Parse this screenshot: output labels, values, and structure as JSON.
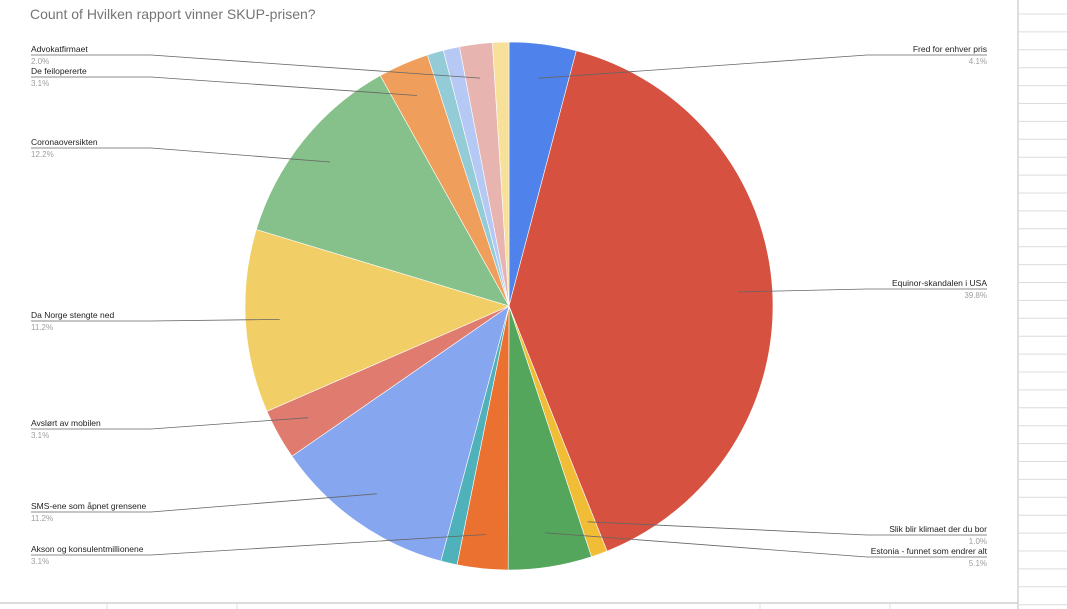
{
  "chart_data": {
    "type": "pie",
    "title": "Count of Hvilken rapport vinner SKUP-prisen?",
    "slices": [
      {
        "label": "Fred for enhver pris",
        "value": 4.1,
        "pct_label": "4.1%",
        "color": "#4f82ea"
      },
      {
        "label": "Equinor-skandalen i USA",
        "value": 39.8,
        "pct_label": "39.8%",
        "color": "#d65140"
      },
      {
        "label": "Slik blir klimaet der du bor",
        "value": 1.0,
        "pct_label": "1.0%",
        "color": "#f2bd36"
      },
      {
        "label": "Estonia - funnet som endrer alt",
        "value": 5.1,
        "pct_label": "5.1%",
        "color": "#55a65d"
      },
      {
        "label": "Akson og konsulentmillionene",
        "value": 3.1,
        "pct_label": "3.1%",
        "color": "#eb7130"
      },
      {
        "label": "",
        "value": 1.0,
        "pct_label": "",
        "color": "#4fb1b9"
      },
      {
        "label": "SMS-ene som åpnet grensene",
        "value": 11.2,
        "pct_label": "11.2%",
        "color": "#86a6ef"
      },
      {
        "label": "Avslørt av mobilen",
        "value": 3.1,
        "pct_label": "3.1%",
        "color": "#e07b70"
      },
      {
        "label": "Da Norge stengte ned",
        "value": 11.2,
        "pct_label": "11.2%",
        "color": "#f2cf66"
      },
      {
        "label": "Coronaoversikten",
        "value": 12.2,
        "pct_label": "12.2%",
        "color": "#86c08a"
      },
      {
        "label": "De feilopererte",
        "value": 3.1,
        "pct_label": "3.1%",
        "color": "#ef9f5b"
      },
      {
        "label": "",
        "value": 1.0,
        "pct_label": "",
        "color": "#93cbd6"
      },
      {
        "label": "",
        "value": 1.0,
        "pct_label": "",
        "color": "#b6c9f5"
      },
      {
        "label": "Advokatfirmaet",
        "value": 2.0,
        "pct_label": "2.0%",
        "color": "#e8b4b0"
      },
      {
        "label": "",
        "value": 1.0,
        "pct_label": "",
        "color": "#f6e09a"
      }
    ],
    "legend": "none"
  }
}
